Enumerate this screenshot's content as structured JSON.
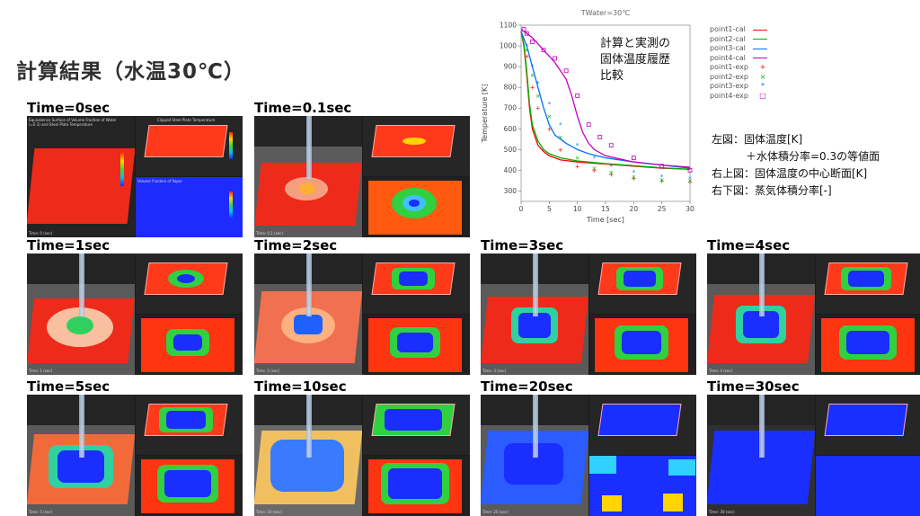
{
  "title": "計算結果（水温30℃）",
  "panels": [
    {
      "label": "Time=0sec",
      "time": "Time: 0 (sec)"
    },
    {
      "label": "Time=0.1sec",
      "time": "Time: 0.1 (sec)"
    },
    {
      "label": "Time=1sec",
      "time": "Time: 1 (sec)"
    },
    {
      "label": "Time=2sec",
      "time": "Time: 2 (sec)"
    },
    {
      "label": "Time=3sec",
      "time": "Time: 3 (sec)"
    },
    {
      "label": "Time=4sec",
      "time": "Time: 4 (sec)"
    },
    {
      "label": "Time=5sec",
      "time": "Time: 5 (sec)"
    },
    {
      "label": "Time=10sec",
      "time": "Time: 10 (sec)"
    },
    {
      "label": "Time=20sec",
      "time": "Time: 20 (sec)"
    },
    {
      "label": "Time=30sec",
      "time": "Time: 30 (sec)"
    }
  ],
  "panel_texts": {
    "left_header": "Equivalence Surface of Volume Fraction of Water (=0.3) and Steel Plate Temperature",
    "rt_header": "Clipped Steel Plate Temperature",
    "rb_header": "Volume Fraction of Vapor"
  },
  "note": [
    "計算と実測の",
    "固体温度履歴",
    "比較"
  ],
  "explanation": [
    "左図：固体温度[K]",
    "＋水体積分率=0.3の等値面",
    "右上図：固体温度の中心断面[K]",
    "右下図：蒸気体積分率[-]"
  ],
  "colors": {
    "p1": "#ff0000",
    "p2": "#00b000",
    "p3": "#0070ff",
    "p4": "#c000c0"
  },
  "chart_data": {
    "type": "line",
    "title": "TWater=30℃",
    "xlabel": "Time [sec]",
    "ylabel": "Temperature [K]",
    "xlim": [
      0,
      30
    ],
    "ylim": [
      250,
      1100
    ],
    "xticks": [
      0,
      5,
      10,
      15,
      20,
      25,
      30
    ],
    "yticks": [
      300,
      400,
      500,
      600,
      700,
      800,
      900,
      1000,
      1100
    ],
    "legend_position": "right",
    "series": [
      {
        "name": "point1-cal",
        "style": "line",
        "color": "#ff0000",
        "x": [
          0,
          0.5,
          1,
          1.5,
          2,
          3,
          4,
          5,
          7,
          10,
          15,
          20,
          25,
          30
        ],
        "y": [
          1070,
          1000,
          860,
          700,
          600,
          520,
          490,
          470,
          450,
          440,
          430,
          420,
          410,
          405
        ]
      },
      {
        "name": "point2-cal",
        "style": "line",
        "color": "#00b000",
        "x": [
          0,
          0.5,
          1,
          1.5,
          2,
          3,
          4,
          5,
          7,
          10,
          15,
          20,
          25,
          30
        ],
        "y": [
          1070,
          1010,
          880,
          720,
          620,
          540,
          500,
          480,
          460,
          445,
          432,
          422,
          412,
          405
        ]
      },
      {
        "name": "point3-cal",
        "style": "line",
        "color": "#0070ff",
        "x": [
          0,
          1,
          2,
          3,
          4,
          5,
          6,
          8,
          10,
          12,
          15,
          20,
          25,
          30
        ],
        "y": [
          1070,
          1000,
          900,
          800,
          700,
          620,
          570,
          530,
          500,
          480,
          460,
          440,
          425,
          410
        ]
      },
      {
        "name": "point4-cal",
        "style": "line",
        "color": "#c000c0",
        "x": [
          0,
          1,
          2,
          3,
          4,
          6,
          8,
          9,
          10,
          11,
          12,
          13,
          15,
          20,
          25,
          30
        ],
        "y": [
          1080,
          1060,
          1040,
          1010,
          980,
          920,
          840,
          760,
          660,
          580,
          530,
          500,
          470,
          440,
          425,
          415
        ]
      },
      {
        "name": "point1-exp",
        "style": "marker",
        "marker": "+",
        "color": "#ff0000",
        "x": [
          1,
          2,
          3,
          5,
          7,
          10,
          13,
          16,
          20,
          25,
          30
        ],
        "y": [
          950,
          800,
          700,
          600,
          500,
          420,
          400,
          380,
          360,
          350,
          345
        ]
      },
      {
        "name": "point2-exp",
        "style": "marker",
        "marker": "x",
        "color": "#00b000",
        "x": [
          1,
          2,
          3,
          5,
          7,
          10,
          13,
          16,
          20,
          25,
          30
        ],
        "y": [
          980,
          860,
          760,
          660,
          560,
          460,
          410,
          390,
          370,
          355,
          350
        ]
      },
      {
        "name": "point3-exp",
        "style": "marker",
        "marker": "*",
        "color": "#0070ff",
        "x": [
          1,
          2,
          3,
          5,
          7,
          10,
          13,
          16,
          20,
          25,
          30
        ],
        "y": [
          1000,
          900,
          820,
          720,
          620,
          520,
          460,
          420,
          390,
          370,
          360
        ]
      },
      {
        "name": "point4-exp",
        "style": "marker",
        "marker": "square",
        "color": "#c000c0",
        "x": [
          0.5,
          1,
          2,
          4,
          6,
          8,
          10,
          12,
          14,
          16,
          20,
          25,
          30
        ],
        "y": [
          1080,
          1060,
          1020,
          980,
          940,
          880,
          760,
          620,
          560,
          520,
          460,
          420,
          400
        ]
      }
    ]
  }
}
